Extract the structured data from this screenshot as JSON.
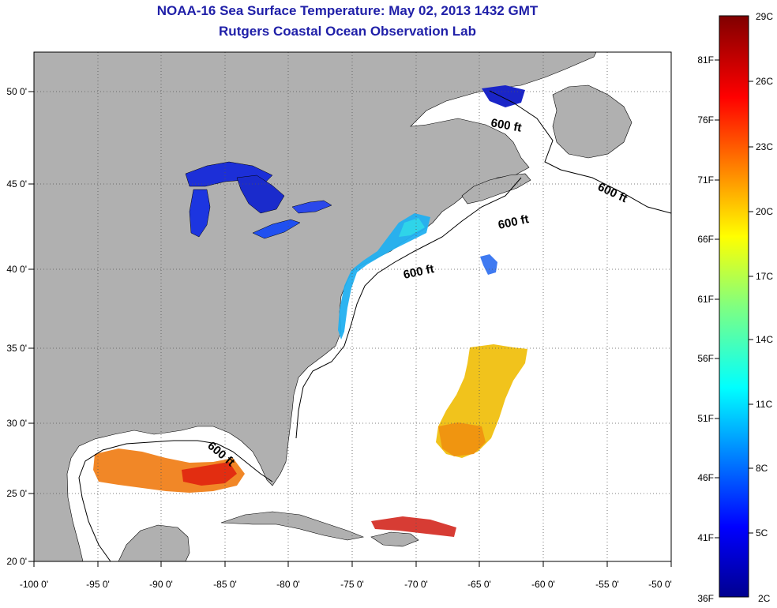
{
  "header": {
    "title": "NOAA-16 Sea Surface Temperature:  May 02, 2013 1432 GMT",
    "subtitle": "Rutgers Coastal Ocean Observation Lab"
  },
  "map": {
    "lon_ticks": [
      "-100 0'",
      "-95 0'",
      "-90 0'",
      "-85 0'",
      "-80 0'",
      "-75 0'",
      "-70 0'",
      "-65 0'",
      "-60 0'",
      "-55 0'",
      "-50 0'"
    ],
    "lat_ticks": [
      "50 0'",
      "45 0'",
      "40 0'",
      "35 0'",
      "30 0'",
      "25 0'",
      "20 0'"
    ],
    "depth_label": "600 ft",
    "land_color": "#b0b0b0",
    "ocean_color": "#ffffff"
  },
  "colorbar": {
    "fahrenheit": [
      "81F",
      "76F",
      "71F",
      "66F",
      "61F",
      "56F",
      "51F",
      "46F",
      "41F"
    ],
    "celsius": [
      "26C",
      "23C",
      "20C",
      "17C",
      "14C",
      "11C",
      "8C",
      "5C"
    ],
    "top_c": "29C",
    "bottom_f": "36F",
    "bottom_c": "2C"
  }
}
